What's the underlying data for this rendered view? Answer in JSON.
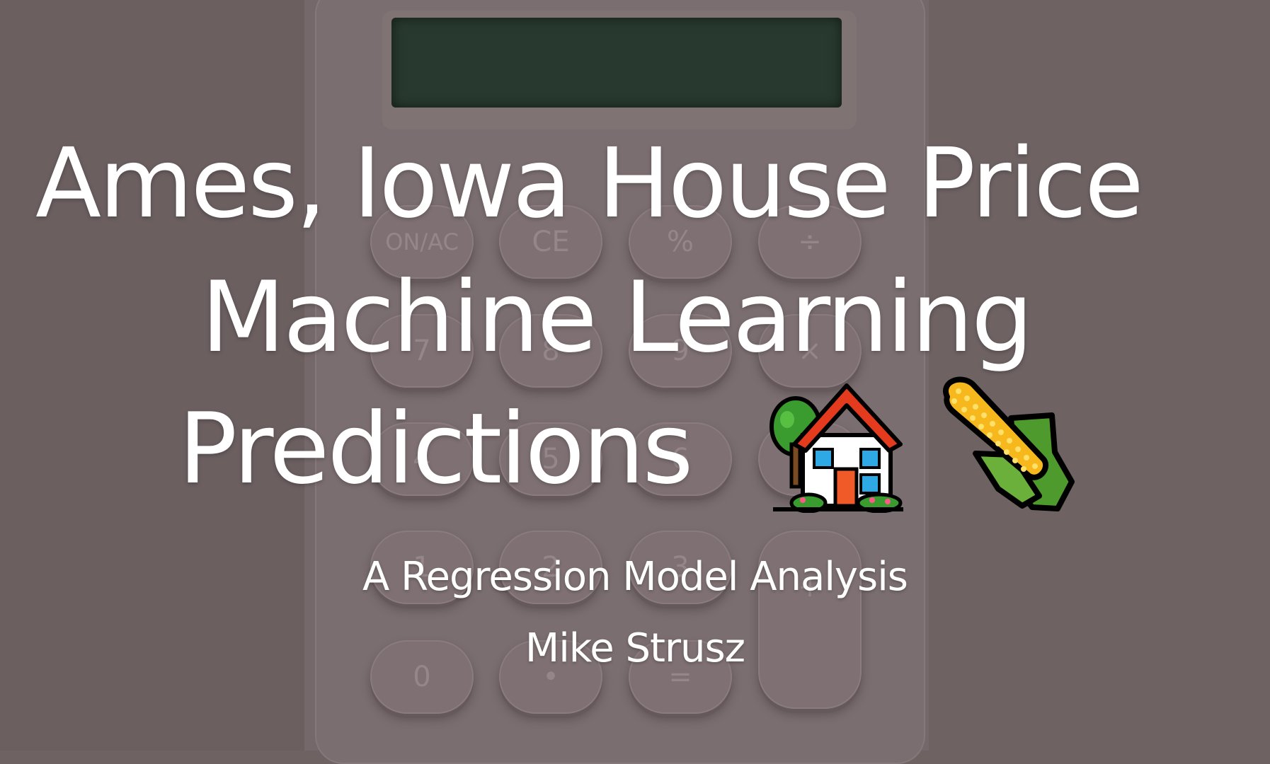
{
  "slide": {
    "title_lines": [
      "Ames, Iowa House Price",
      "Machine Learning",
      "Predictions"
    ],
    "title_emojis": [
      "house-with-garden-emoji",
      "ear-of-corn-emoji"
    ],
    "subtitle": "A Regression Model Analysis",
    "author": "Mike Strusz"
  },
  "background": {
    "description_icon": "calculator",
    "keys": [
      "ON/AC",
      "CE",
      "%",
      "÷",
      "7",
      "8",
      "9",
      "×",
      "4",
      "5",
      "6",
      "1",
      "2",
      "3",
      "+",
      "0",
      "•",
      "="
    ]
  },
  "colors": {
    "text": "#ffffff",
    "background": "#6e6263",
    "calculator_screen": "#283a30"
  }
}
